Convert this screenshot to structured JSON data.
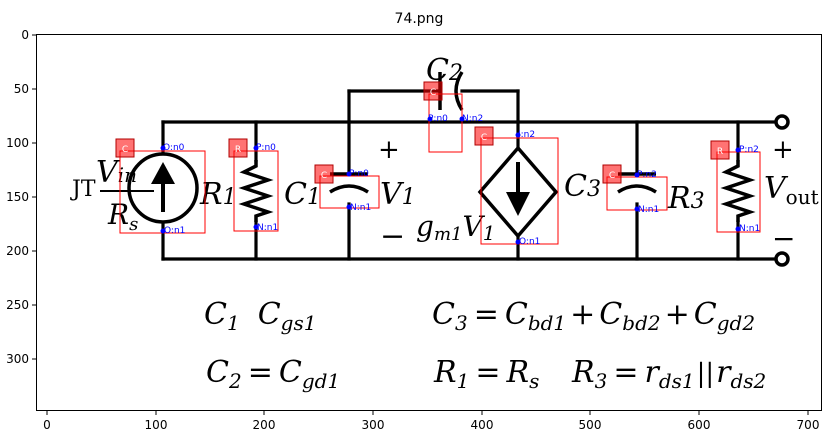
{
  "title": "74.png",
  "axes": {
    "x_ticks": [
      "0",
      "100",
      "200",
      "300",
      "400",
      "500",
      "600",
      "700"
    ],
    "y_ticks": [
      "0",
      "50",
      "100",
      "150",
      "200",
      "250",
      "300"
    ]
  },
  "circuit": {
    "source_label": "V",
    "source_sub": "in",
    "source_den": "R",
    "source_den_sub": "s",
    "source_prefix": "JT",
    "r1_main": "R",
    "r1_sub": "1",
    "c1_main": "C",
    "c1_sub": "1",
    "v1_main": "V",
    "v1_sub": "1",
    "c2_main": "C",
    "c2_sub": "2",
    "gm_main": "g",
    "gm_sub": "m1",
    "gm_v_main": "V",
    "gm_v_sub": "1",
    "c3_main": "C",
    "c3_sub": "3",
    "r3_main": "R",
    "r3_sub": "3",
    "vout_main": "V",
    "vout_sub": "out",
    "plus": "+",
    "minus": "−"
  },
  "equations": {
    "eq1_a": "C",
    "eq1_a_sub": "1",
    "eq1_b": "C",
    "eq1_b_sub": "gs1",
    "eq2_lhs": "C",
    "eq2_lhs_sub": "3",
    "eq2_eq": "=",
    "eq2_t1": "C",
    "eq2_t1_sub": "bd1",
    "eq2_plus1": "+",
    "eq2_t2": "C",
    "eq2_t2_sub": "bd2",
    "eq2_plus2": "+",
    "eq2_t3": "C",
    "eq2_t3_sub": "gd2",
    "eq3_lhs": "C",
    "eq3_lhs_sub": "2",
    "eq3_eq": "=",
    "eq3_rhs": "C",
    "eq3_rhs_sub": "gd1",
    "eq4_lhs": "R",
    "eq4_lhs_sub": "1",
    "eq4_eq": "=",
    "eq4_rhs": "R",
    "eq4_rhs_sub": "s",
    "eq5_lhs": "R",
    "eq5_lhs_sub": "3",
    "eq5_eq": "=",
    "eq5_r1": "r",
    "eq5_r1_sub": "ds1",
    "eq5_par": "||",
    "eq5_r2": "r",
    "eq5_r2_sub": "ds2"
  },
  "detections": [
    {
      "cls": "C",
      "pins": [
        "O:n0",
        "O:n1"
      ]
    },
    {
      "cls": "R",
      "pins": [
        "P:n0",
        "N:n1"
      ]
    },
    {
      "cls": "C",
      "pins": [
        "P:n0",
        "N:n1"
      ]
    },
    {
      "cls": "C",
      "pins": [
        "P:n0",
        "N:n2"
      ]
    },
    {
      "cls": "C",
      "pins": [
        "I:n2",
        "O:n1"
      ]
    },
    {
      "cls": "C",
      "pins": [
        "P:n2",
        "N:n1"
      ]
    },
    {
      "cls": "R",
      "pins": [
        "P:n2",
        "N:n1"
      ]
    }
  ],
  "colors": {
    "boxes": "#ff0000",
    "pins": "#0000ff",
    "wires": "#000000"
  }
}
